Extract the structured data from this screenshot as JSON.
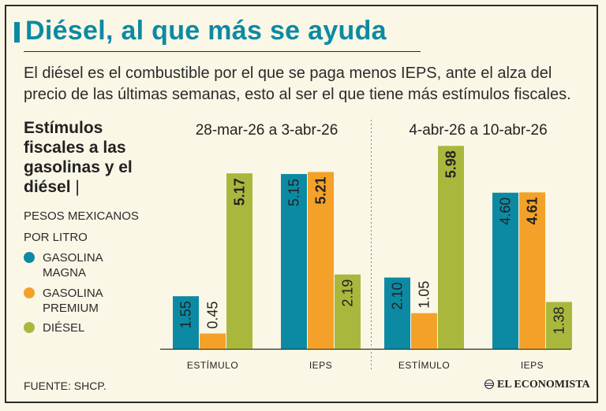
{
  "header": {
    "title": "Diésel, al que más se ayuda",
    "subtitle": "El diésel es el combustible por el que se paga menos IEPS, ante el alza del precio de las últimas semanas, esto al ser el que tiene más estímulos fiscales."
  },
  "sidebar": {
    "title": "Estímulos fiscales a las gasolinas y el diésel",
    "title_separator": "|",
    "unit": "PESOS MEXICANOS POR LITRO"
  },
  "legend": [
    {
      "label": "GASOLINA MAGNA",
      "color": "#0d8aa3"
    },
    {
      "label": "GASOLINA PREMIUM",
      "color": "#f4a12a"
    },
    {
      "label": "DIÉSEL",
      "color": "#a9b83d"
    }
  ],
  "footer": {
    "source": "FUENTE: SHCP.",
    "brand": "EL ECONOMISTA"
  },
  "chart_data": {
    "type": "bar",
    "ylim": [
      0,
      6.2
    ],
    "series_names": [
      "GASOLINA MAGNA",
      "GASOLINA PREMIUM",
      "DIÉSEL"
    ],
    "colors": [
      "#0d8aa3",
      "#f4a12a",
      "#a9b83d"
    ],
    "periods": [
      {
        "label": "28-mar-26 a 3-abr-26",
        "groups": [
          {
            "category": "ESTÍMULO",
            "values": [
              1.55,
              0.45,
              5.17
            ],
            "labels": [
              "1.55",
              "0.45",
              "5.17"
            ],
            "bold_index": 2
          },
          {
            "category": "IEPS",
            "values": [
              5.15,
              5.21,
              2.19
            ],
            "labels": [
              "5.15",
              "5.21",
              "2.19"
            ],
            "bold_index": 1
          }
        ]
      },
      {
        "label": "4-abr-26 a 10-abr-26",
        "groups": [
          {
            "category": "ESTÍMULO",
            "values": [
              2.1,
              1.05,
              5.98
            ],
            "labels": [
              "2.10",
              "1.05",
              "5.98"
            ],
            "bold_index": 2
          },
          {
            "category": "IEPS",
            "values": [
              4.6,
              4.61,
              1.38
            ],
            "labels": [
              "4.60",
              "4.61",
              "1.38"
            ],
            "bold_index": 1
          }
        ]
      }
    ]
  }
}
